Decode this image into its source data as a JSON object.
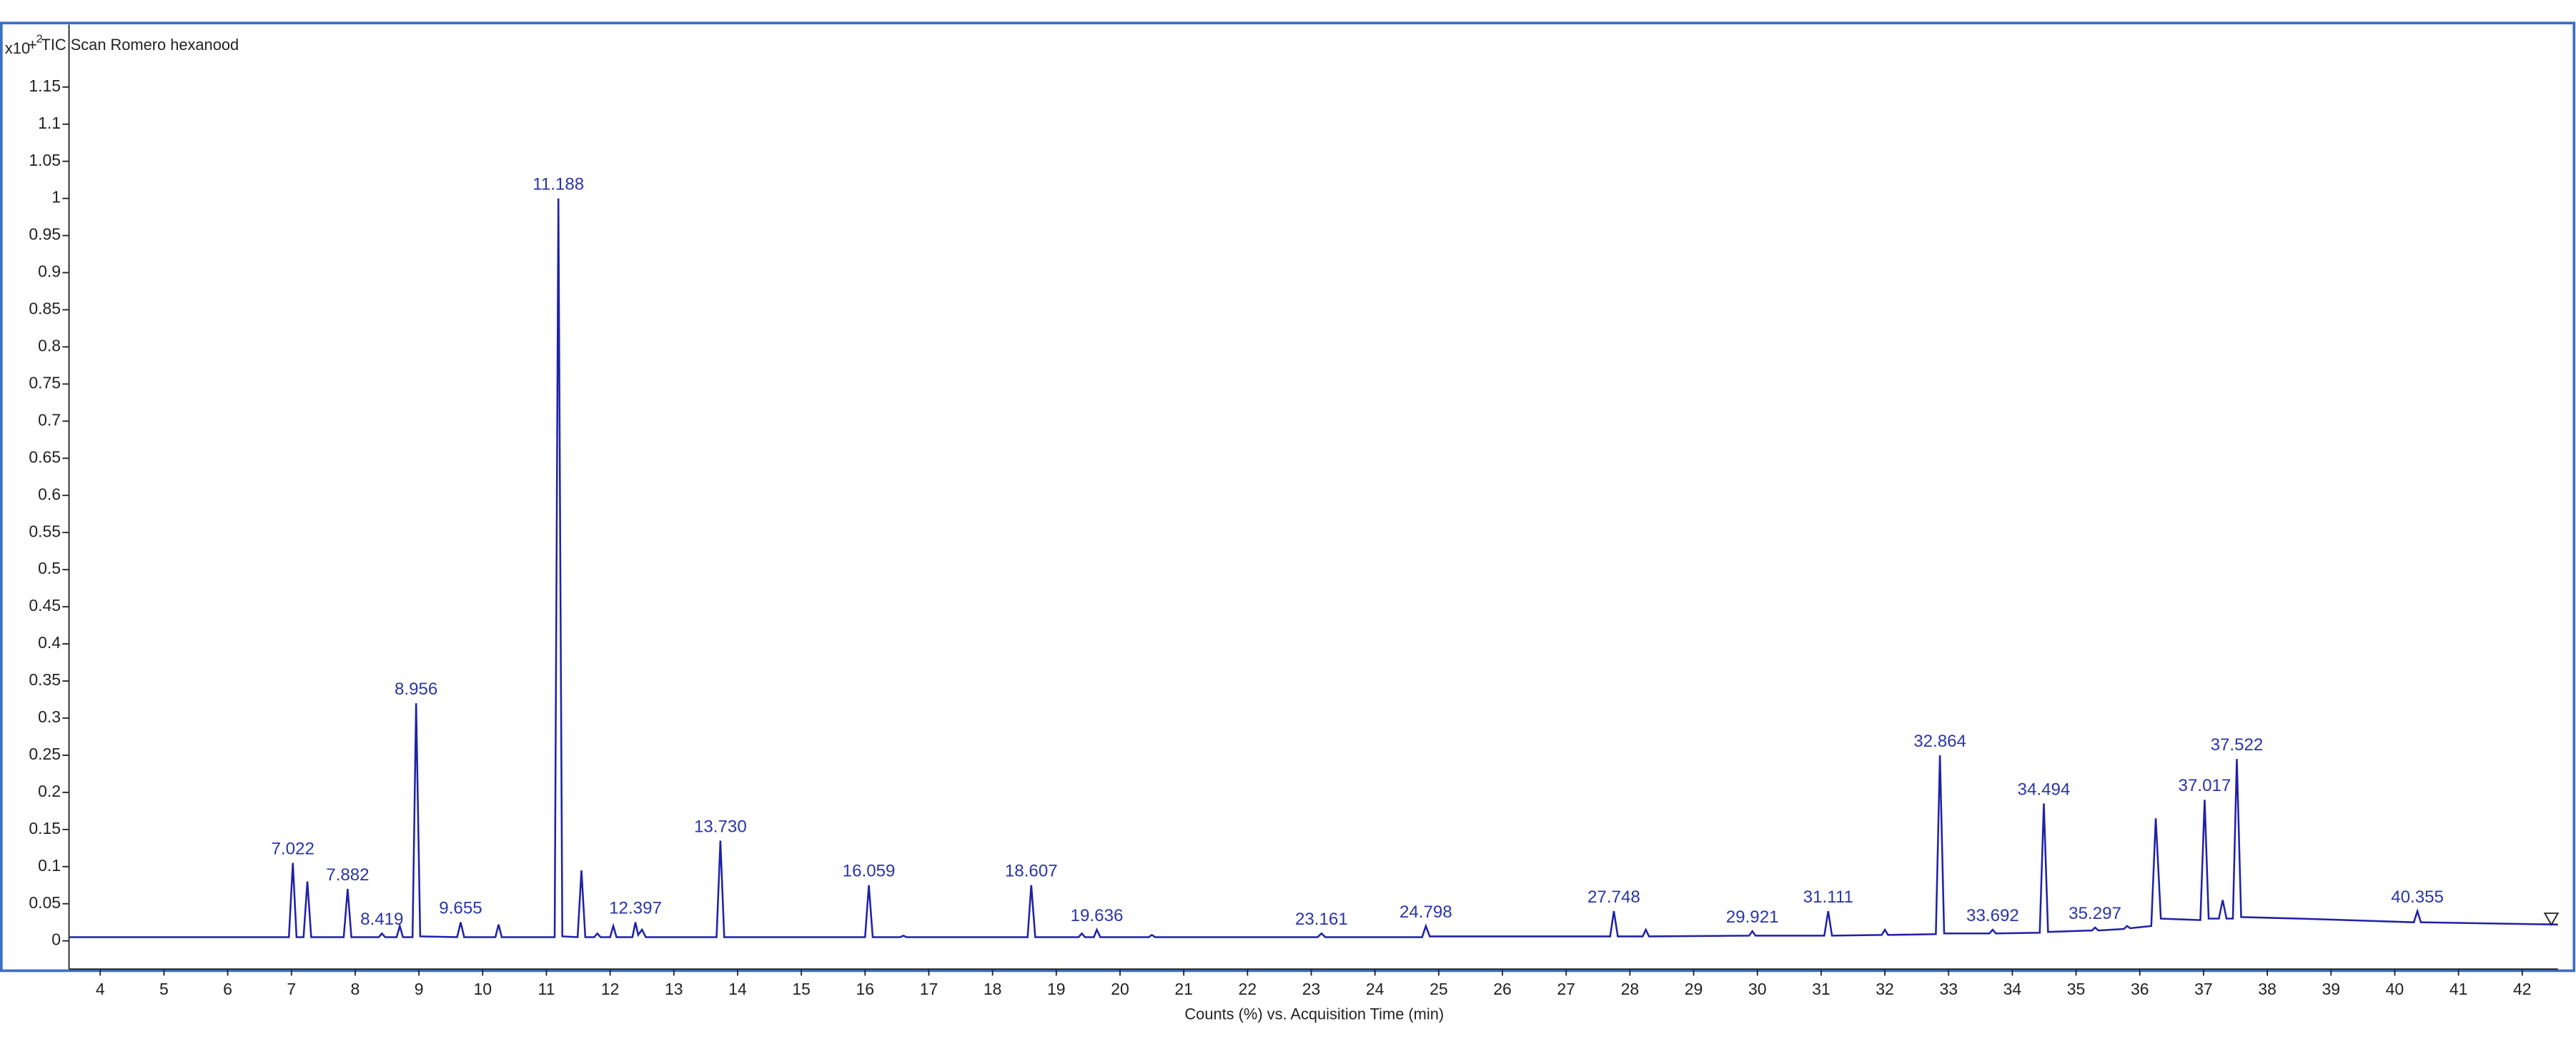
{
  "chart_data": {
    "type": "line",
    "title": "+ TIC Scan Romero hexanood",
    "y_multiplier": "x10",
    "y_multiplier_exponent": "2",
    "x_label": "Counts (%) vs. Acquisition Time (min)",
    "xlim": [
      3.51,
      42.56
    ],
    "ylim": [
      -0.038,
      1.234
    ],
    "xticks": [
      4,
      5,
      6,
      7,
      8,
      9,
      10,
      11,
      12,
      13,
      14,
      15,
      16,
      17,
      18,
      19,
      20,
      21,
      22,
      23,
      24,
      25,
      26,
      27,
      28,
      29,
      30,
      31,
      32,
      33,
      34,
      35,
      36,
      37,
      38,
      39,
      40,
      41,
      42
    ],
    "yticks": [
      0,
      0.05,
      0.1,
      0.15,
      0.2,
      0.25,
      0.3,
      0.35,
      0.4,
      0.45,
      0.5,
      0.55,
      0.6,
      0.65,
      0.7,
      0.75,
      0.8,
      0.85,
      0.9,
      0.95,
      1,
      1.05,
      1.1,
      1.15
    ],
    "x": [
      3.51,
      6.96,
      7.022,
      7.08,
      7.19,
      7.25,
      7.31,
      7.82,
      7.882,
      7.94,
      8.37,
      8.419,
      8.47,
      8.65,
      8.7,
      8.75,
      8.9,
      8.956,
      9.02,
      9.6,
      9.655,
      9.71,
      10.2,
      10.25,
      10.3,
      11.13,
      11.188,
      11.25,
      11.49,
      11.55,
      11.61,
      11.75,
      11.8,
      11.85,
      12.0,
      12.05,
      12.1,
      12.35,
      12.397,
      12.44,
      12.5,
      12.56,
      13.67,
      13.73,
      13.79,
      16.0,
      16.059,
      16.12,
      16.55,
      16.6,
      16.65,
      18.55,
      18.607,
      18.67,
      19.35,
      19.4,
      19.45,
      19.59,
      19.636,
      19.69,
      20.45,
      20.5,
      20.55,
      23.1,
      23.161,
      23.22,
      24.74,
      24.798,
      24.86,
      27.69,
      27.748,
      27.81,
      28.2,
      28.25,
      28.3,
      29.87,
      29.921,
      29.97,
      31.05,
      31.111,
      31.17,
      31.95,
      32.0,
      32.05,
      32.8,
      32.864,
      32.93,
      33.64,
      33.692,
      33.74,
      34.43,
      34.494,
      34.56,
      35.25,
      35.297,
      35.35,
      35.75,
      35.8,
      35.85,
      36.18,
      36.25,
      36.33,
      36.95,
      37.017,
      37.08,
      37.24,
      37.3,
      37.36,
      37.46,
      37.522,
      37.59,
      38.5,
      40.3,
      40.355,
      40.41,
      42.56
    ],
    "series": [
      {
        "color": "#1f22a8",
        "values": [
          0.005,
          0.005,
          0.105,
          0.005,
          0.005,
          0.08,
          0.005,
          0.005,
          0.07,
          0.005,
          0.005,
          0.01,
          0.005,
          0.005,
          0.02,
          0.005,
          0.005,
          0.32,
          0.006,
          0.005,
          0.025,
          0.005,
          0.005,
          0.022,
          0.005,
          0.005,
          1.0,
          0.006,
          0.005,
          0.095,
          0.005,
          0.005,
          0.01,
          0.005,
          0.005,
          0.02,
          0.005,
          0.005,
          0.025,
          0.008,
          0.015,
          0.005,
          0.005,
          0.135,
          0.005,
          0.005,
          0.075,
          0.005,
          0.005,
          0.007,
          0.005,
          0.005,
          0.075,
          0.005,
          0.005,
          0.01,
          0.005,
          0.005,
          0.015,
          0.005,
          0.005,
          0.008,
          0.005,
          0.005,
          0.01,
          0.005,
          0.005,
          0.02,
          0.006,
          0.006,
          0.04,
          0.006,
          0.006,
          0.015,
          0.006,
          0.007,
          0.013,
          0.007,
          0.007,
          0.04,
          0.007,
          0.008,
          0.015,
          0.008,
          0.009,
          0.25,
          0.01,
          0.01,
          0.015,
          0.01,
          0.011,
          0.185,
          0.012,
          0.014,
          0.018,
          0.014,
          0.016,
          0.02,
          0.017,
          0.02,
          0.165,
          0.03,
          0.028,
          0.19,
          0.03,
          0.03,
          0.055,
          0.03,
          0.03,
          0.245,
          0.032,
          0.03,
          0.025,
          0.04,
          0.025,
          0.022
        ]
      }
    ],
    "annotations": [
      {
        "text": "7.022",
        "x": 7.022,
        "y": 0.105
      },
      {
        "text": "7.882",
        "x": 7.882,
        "y": 0.07
      },
      {
        "text": "8.419",
        "x": 8.419,
        "y": 0.01
      },
      {
        "text": "8.956",
        "x": 8.956,
        "y": 0.32
      },
      {
        "text": "9.655",
        "x": 9.655,
        "y": 0.025
      },
      {
        "text": "11.188",
        "x": 11.188,
        "y": 1.0
      },
      {
        "text": "12.397",
        "x": 12.397,
        "y": 0.025
      },
      {
        "text": "13.730",
        "x": 13.73,
        "y": 0.135
      },
      {
        "text": "16.059",
        "x": 16.059,
        "y": 0.075
      },
      {
        "text": "18.607",
        "x": 18.607,
        "y": 0.075
      },
      {
        "text": "19.636",
        "x": 19.636,
        "y": 0.015
      },
      {
        "text": "23.161",
        "x": 23.161,
        "y": 0.01
      },
      {
        "text": "24.798",
        "x": 24.798,
        "y": 0.02
      },
      {
        "text": "27.748",
        "x": 27.748,
        "y": 0.04
      },
      {
        "text": "29.921",
        "x": 29.921,
        "y": 0.013
      },
      {
        "text": "31.111",
        "x": 31.111,
        "y": 0.04
      },
      {
        "text": "32.864",
        "x": 32.864,
        "y": 0.25
      },
      {
        "text": "33.692",
        "x": 33.692,
        "y": 0.015
      },
      {
        "text": "34.494",
        "x": 34.494,
        "y": 0.185
      },
      {
        "text": "35.297",
        "x": 35.297,
        "y": 0.018
      },
      {
        "text": "37.017",
        "x": 37.017,
        "y": 0.19
      },
      {
        "text": "37.522",
        "x": 37.522,
        "y": 0.245
      },
      {
        "text": "40.355",
        "x": 40.355,
        "y": 0.04
      }
    ]
  }
}
